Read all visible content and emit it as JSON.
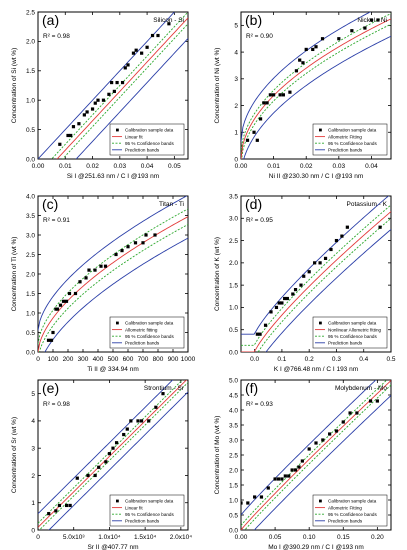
{
  "legend_labels": {
    "calibration": "Calibration sample data",
    "confidence": "95 % Confidence bands",
    "prediction": "Prediction bands"
  },
  "colors": {
    "fit": "#e33a3a",
    "confidence": "#2ca82c",
    "prediction": "#2b3fa8",
    "points": "#000000"
  },
  "chart_data": [
    {
      "type": "scatter",
      "panel_letter": "(a)",
      "title": "Silicon - Si",
      "r2": "R² = 0.98",
      "fit_label": "Linear fit",
      "fit_kind": "linear",
      "xlabel": "Si I @251.63 nm / C I @193 nm",
      "ylabel": "Concentration of Si  (wt %)",
      "xlim": [
        0.0,
        0.055
      ],
      "ylim": [
        0.0,
        2.5
      ],
      "xticks": [
        0.0,
        0.01,
        0.02,
        0.03,
        0.04,
        0.05
      ],
      "xtick_labels": [
        "0.00",
        "0.01",
        "0.02",
        "0.03",
        "0.04",
        "0.05"
      ],
      "yticks": [
        0.0,
        0.5,
        1.0,
        1.5,
        2.0,
        2.5
      ],
      "ytick_labels": [
        "0.0",
        "0.5",
        "1.0",
        "1.5",
        "2.0",
        "2.5"
      ],
      "fit": {
        "a": -0.35,
        "b": 50
      },
      "conf_offset": 0.1,
      "pred_offset": 0.35,
      "x": [
        0.008,
        0.011,
        0.012,
        0.013,
        0.015,
        0.017,
        0.018,
        0.02,
        0.021,
        0.022,
        0.024,
        0.026,
        0.027,
        0.028,
        0.029,
        0.031,
        0.032,
        0.033,
        0.035,
        0.036,
        0.038,
        0.04,
        0.042,
        0.044,
        0.048
      ],
      "y": [
        0.25,
        0.4,
        0.4,
        0.55,
        0.6,
        0.75,
        0.8,
        0.85,
        0.95,
        1.0,
        1.0,
        1.1,
        1.3,
        1.15,
        1.3,
        1.3,
        1.55,
        1.6,
        1.8,
        1.85,
        1.8,
        1.9,
        2.1,
        2.1,
        2.3
      ]
    },
    {
      "type": "scatter",
      "panel_letter": "(b)",
      "title": "Nickel - Ni",
      "r2": "R² = 0.90",
      "fit_label": "Allometric Fitting",
      "fit_kind": "power",
      "xlabel": "Ni II @230.30 nm / C I @193 nm",
      "ylabel": "Concentration of Ni  (wt %)",
      "xlim": [
        0.0,
        0.046
      ],
      "ylim": [
        0.0,
        5.5
      ],
      "xticks": [
        0.0,
        0.01,
        0.02,
        0.03,
        0.04
      ],
      "xtick_labels": [
        "0.00",
        "0.01",
        "0.02",
        "0.03",
        "0.04"
      ],
      "yticks": [
        0,
        1,
        2,
        3,
        4,
        5
      ],
      "ytick_labels": [
        "0",
        "1",
        "2",
        "3",
        "4",
        "5"
      ],
      "fit": {
        "a": 26,
        "b": 0.52
      },
      "conf_offset": 0.2,
      "pred_offset": 0.65,
      "x": [
        0.002,
        0.004,
        0.005,
        0.006,
        0.007,
        0.008,
        0.009,
        0.01,
        0.012,
        0.013,
        0.015,
        0.017,
        0.018,
        0.019,
        0.02,
        0.022,
        0.023,
        0.025,
        0.03,
        0.034,
        0.038,
        0.04,
        0.042
      ],
      "y": [
        0.7,
        1.0,
        0.7,
        1.5,
        2.1,
        2.1,
        2.4,
        2.4,
        2.4,
        2.4,
        2.5,
        3.3,
        3.7,
        3.6,
        4.1,
        4.1,
        4.2,
        4.5,
        4.5,
        4.8,
        4.9,
        5.2,
        5.2
      ]
    },
    {
      "type": "scatter",
      "panel_letter": "(c)",
      "title": "Titan - Ti",
      "r2": "R² = 0.91",
      "fit_label": "Allometric fitting",
      "fit_kind": "power",
      "xlabel": "Ti II @ 334.94 nm",
      "ylabel": "Concentration of Ti  (wt %)",
      "xlim": [
        0,
        1000
      ],
      "ylim": [
        0.0,
        4.0
      ],
      "xticks": [
        0,
        100,
        200,
        300,
        400,
        500,
        600,
        700,
        800,
        900,
        1000
      ],
      "xtick_labels": [
        "0",
        "100",
        "200",
        "300",
        "400",
        "500",
        "600",
        "700",
        "800",
        "900",
        "1000"
      ],
      "yticks": [
        0.0,
        0.5,
        1.0,
        1.5,
        2.0,
        2.5,
        3.0,
        3.5,
        4.0
      ],
      "ytick_labels": [
        "0.0",
        "0.5",
        "1.0",
        "1.5",
        "2.0",
        "2.5",
        "3.0",
        "3.5",
        "4.0"
      ],
      "fit": {
        "a": 0.055,
        "b": 0.6
      },
      "conf_offset": 0.2,
      "pred_offset": 0.55,
      "x": [
        70,
        90,
        100,
        120,
        130,
        150,
        170,
        190,
        210,
        250,
        280,
        320,
        340,
        380,
        420,
        450,
        520,
        560,
        600,
        650,
        700,
        720,
        780
      ],
      "y": [
        0.3,
        0.3,
        0.5,
        1.1,
        1.1,
        1.2,
        1.3,
        1.3,
        1.5,
        1.5,
        1.8,
        1.9,
        2.1,
        2.1,
        2.2,
        2.2,
        2.5,
        2.6,
        2.7,
        2.8,
        2.8,
        3.0,
        3.0
      ]
    },
    {
      "type": "scatter",
      "panel_letter": "(d)",
      "title": "Potassium - K",
      "r2": "R² = 0.95",
      "fit_label": "Nonlinear Allometric fitting",
      "fit_kind": "power",
      "xlabel": "K I @766.48 nm  / C I 193 nm",
      "ylabel": "Concentration of K  (wt %)",
      "xlim": [
        -0.05,
        0.5
      ],
      "ylim": [
        0.0,
        3.5
      ],
      "xticks": [
        0.0,
        0.1,
        0.2,
        0.3,
        0.4,
        0.5
      ],
      "xtick_labels": [
        "0.0",
        "0.1",
        "0.2",
        "0.3",
        "0.4",
        "0.5"
      ],
      "yticks": [
        0.0,
        0.5,
        1.0,
        1.5,
        2.0,
        2.5,
        3.0,
        3.5
      ],
      "ytick_labels": [
        "0.0",
        "0.5",
        "1.0",
        "1.5",
        "2.0",
        "2.5",
        "3.0",
        "3.5"
      ],
      "fit": {
        "a": 5.6,
        "b": 0.83
      },
      "conf_offset": 0.15,
      "pred_offset": 0.4,
      "x": [
        0.01,
        0.02,
        0.04,
        0.06,
        0.08,
        0.09,
        0.1,
        0.11,
        0.12,
        0.14,
        0.15,
        0.17,
        0.18,
        0.2,
        0.22,
        0.24,
        0.26,
        0.28,
        0.3,
        0.32,
        0.34,
        0.46
      ],
      "y": [
        0.4,
        0.4,
        0.6,
        0.9,
        1.0,
        1.1,
        1.1,
        1.2,
        1.2,
        1.3,
        1.4,
        1.5,
        1.7,
        1.8,
        2.0,
        2.0,
        2.1,
        2.3,
        2.5,
        2.6,
        2.8,
        2.8
      ]
    },
    {
      "type": "scatter",
      "panel_letter": "(e)",
      "title": "Strontium - Sr",
      "r2": "R² = 0.98",
      "fit_label": "Linear fit",
      "fit_kind": "linear",
      "xlabel": "Sr II @407.77 nm",
      "ylabel": "Concentration of Sr  (wt %)",
      "xlim": [
        0,
        21000
      ],
      "ylim": [
        0.0,
        5.5
      ],
      "xticks": [
        0,
        5000,
        10000,
        15000,
        20000
      ],
      "xtick_labels": [
        "0",
        "5.0x10³",
        "1.0x10⁴",
        "1.5x10⁴",
        "2.0x10⁴"
      ],
      "yticks": [
        0,
        1,
        2,
        3,
        4,
        5
      ],
      "ytick_labels": [
        "0",
        "1",
        "2",
        "3",
        "4",
        "5"
      ],
      "fit": {
        "a": 0.1,
        "b": 0.00026
      },
      "conf_offset": 0.15,
      "pred_offset": 0.5,
      "x": [
        1500,
        2500,
        3000,
        4000,
        4500,
        5500,
        7000,
        8000,
        8500,
        9500,
        10000,
        10500,
        11000,
        12000,
        12500,
        13000,
        14000,
        14500,
        15500,
        16500,
        17500
      ],
      "y": [
        0.6,
        0.7,
        0.9,
        0.9,
        0.9,
        1.9,
        2.0,
        2.0,
        2.3,
        2.5,
        2.8,
        3.0,
        3.2,
        3.5,
        3.7,
        4.0,
        4.0,
        4.0,
        4.0,
        4.5,
        5.0
      ]
    },
    {
      "type": "scatter",
      "panel_letter": "(f)",
      "title": "Molybdenum - Mo",
      "r2": "R² = 0.93",
      "fit_label": "Allometric Fitting",
      "fit_kind": "power",
      "xlabel": "Mo I @390.29 nm / C I @193 nm",
      "ylabel": "Concentration of Mo  (wt %)",
      "xlim": [
        0.0,
        0.22
      ],
      "ylim": [
        0.0,
        5.0
      ],
      "xticks": [
        0.0,
        0.05,
        0.1,
        0.15,
        0.2
      ],
      "xtick_labels": [
        "0.00",
        "0.05",
        "0.10",
        "0.15",
        "0.20"
      ],
      "yticks": [
        0.0,
        0.5,
        1.0,
        1.5,
        2.0,
        2.5,
        3.0,
        3.5,
        4.0,
        4.5,
        5.0
      ],
      "ytick_labels": [
        "0.0",
        "0.5",
        "1.0",
        "1.5",
        "2.0",
        "2.5",
        "3.0",
        "3.5",
        "4.0",
        "4.5",
        "5.0"
      ],
      "fit": {
        "a": 21,
        "b": 0.95
      },
      "conf_offset": 0.15,
      "pred_offset": 0.5,
      "x": [
        0.0,
        0.01,
        0.02,
        0.03,
        0.04,
        0.05,
        0.055,
        0.06,
        0.065,
        0.07,
        0.075,
        0.08,
        0.085,
        0.09,
        0.1,
        0.11,
        0.12,
        0.13,
        0.14,
        0.15,
        0.16,
        0.17,
        0.19,
        0.2
      ],
      "y": [
        0.9,
        0.9,
        1.1,
        1.1,
        1.4,
        1.7,
        1.7,
        1.7,
        1.8,
        1.8,
        2.0,
        2.0,
        2.1,
        2.3,
        2.7,
        2.9,
        3.0,
        3.2,
        3.3,
        3.6,
        3.9,
        3.9,
        4.3,
        4.3
      ]
    }
  ]
}
